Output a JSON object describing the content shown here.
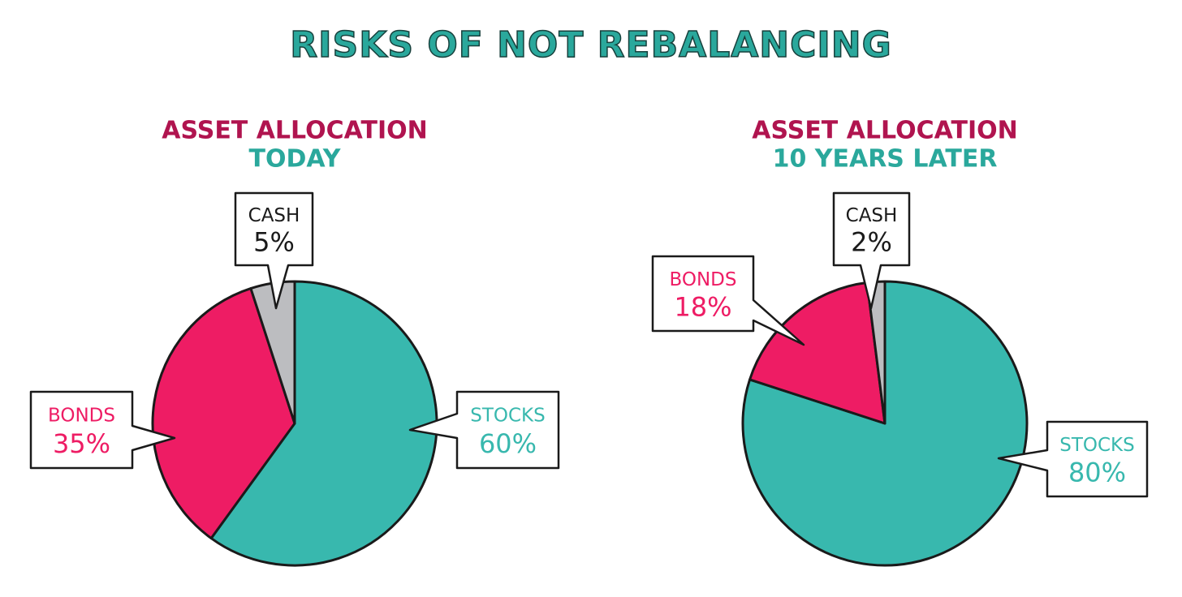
{
  "title": "RISKS OF NOT REBALANCING",
  "chart_data": [
    {
      "type": "pie",
      "title": "ASSET ALLOCATION",
      "subtitle": "TODAY",
      "categories": [
        "STOCKS",
        "BONDS",
        "CASH"
      ],
      "values": [
        60,
        35,
        5
      ],
      "value_labels": [
        "60%",
        "35%",
        "5%"
      ],
      "colors": [
        "#38b8ae",
        "#ee1c64",
        "#bcbdc0"
      ]
    },
    {
      "type": "pie",
      "title": "ASSET ALLOCATION",
      "subtitle": "10 YEARS LATER",
      "categories": [
        "STOCKS",
        "BONDS",
        "CASH"
      ],
      "values": [
        80,
        18,
        2
      ],
      "value_labels": [
        "80%",
        "18%",
        "2%"
      ],
      "colors": [
        "#38b8ae",
        "#ee1c64",
        "#bcbdc0"
      ]
    }
  ]
}
